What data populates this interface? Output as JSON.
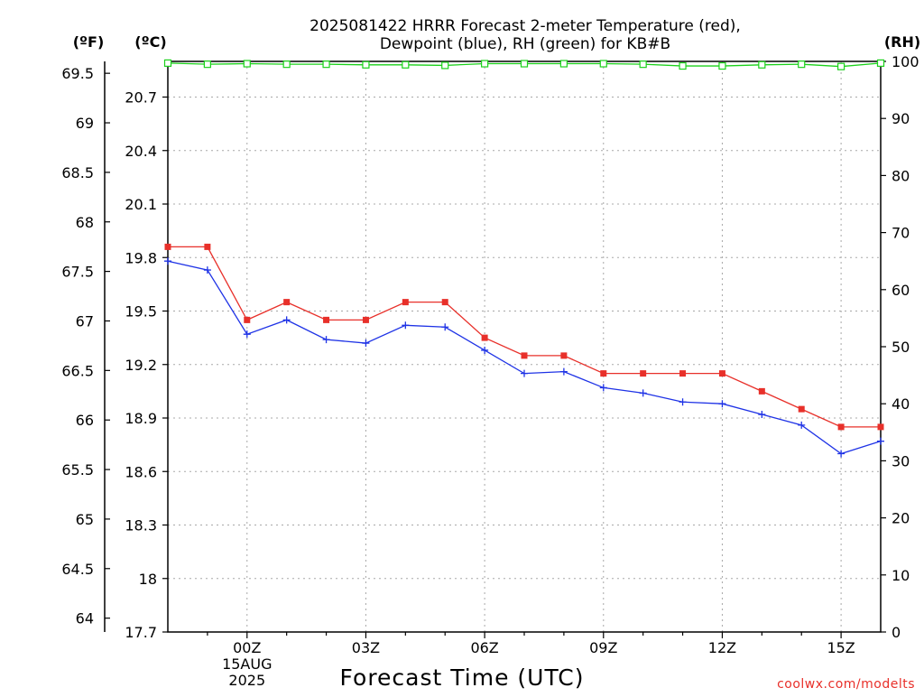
{
  "chart_data": {
    "type": "line",
    "title_lines": [
      "2025081422 HRRR Forecast 2-meter Temperature (red),",
      "Dewpoint (blue), RH (green) for KB#B"
    ],
    "axes": {
      "fahrenheit": {
        "unit_label": "(ºF)",
        "ticks": [
          "64",
          "64.5",
          "65",
          "65.5",
          "66",
          "66.5",
          "67",
          "67.5",
          "68",
          "68.5",
          "69",
          "69.5"
        ]
      },
      "celsius": {
        "unit_label": "(ºC)",
        "ylim": [
          17.7,
          20.9
        ],
        "ticks": [
          "17.7",
          "18",
          "18.3",
          "18.6",
          "18.9",
          "19.2",
          "19.5",
          "19.8",
          "20.1",
          "20.4",
          "20.7"
        ]
      },
      "rh": {
        "unit_label": "(RH)",
        "ylim": [
          0,
          100
        ],
        "ticks": [
          "0",
          "10",
          "20",
          "30",
          "40",
          "50",
          "60",
          "70",
          "80",
          "90",
          "100"
        ]
      }
    },
    "x": {
      "label": "Forecast Time (UTC)",
      "range_hours": [
        -2,
        16
      ],
      "ticks": [
        {
          "hour": 0,
          "lines": [
            "00Z",
            "15AUG",
            "2025"
          ]
        },
        {
          "hour": 3,
          "lines": [
            "03Z"
          ]
        },
        {
          "hour": 6,
          "lines": [
            "06Z"
          ]
        },
        {
          "hour": 9,
          "lines": [
            "09Z"
          ]
        },
        {
          "hour": 12,
          "lines": [
            "12Z"
          ]
        },
        {
          "hour": 15,
          "lines": [
            "15Z"
          ]
        }
      ]
    },
    "series": [
      {
        "key": "temperature",
        "color": "#e8302a",
        "marker": "filled-square",
        "axis": "celsius",
        "points": [
          [
            -2,
            19.86
          ],
          [
            -1,
            19.86
          ],
          [
            0,
            19.45
          ],
          [
            1,
            19.55
          ],
          [
            2,
            19.45
          ],
          [
            3,
            19.45
          ],
          [
            4,
            19.55
          ],
          [
            5,
            19.55
          ],
          [
            6,
            19.35
          ],
          [
            7,
            19.25
          ],
          [
            8,
            19.25
          ],
          [
            9,
            19.15
          ],
          [
            10,
            19.15
          ],
          [
            11,
            19.15
          ],
          [
            12,
            19.15
          ],
          [
            13,
            19.05
          ],
          [
            14,
            18.95
          ],
          [
            15,
            18.85
          ],
          [
            16,
            18.85
          ]
        ]
      },
      {
        "key": "dewpoint",
        "color": "#1f33e6",
        "marker": "plus",
        "axis": "celsius",
        "points": [
          [
            -2,
            19.78
          ],
          [
            -1,
            19.73
          ],
          [
            0,
            19.37
          ],
          [
            1,
            19.45
          ],
          [
            2,
            19.34
          ],
          [
            3,
            19.32
          ],
          [
            4,
            19.42
          ],
          [
            5,
            19.41
          ],
          [
            6,
            19.28
          ],
          [
            7,
            19.15
          ],
          [
            8,
            19.16
          ],
          [
            9,
            19.07
          ],
          [
            10,
            19.04
          ],
          [
            11,
            18.99
          ],
          [
            12,
            18.98
          ],
          [
            13,
            18.92
          ],
          [
            14,
            18.86
          ],
          [
            15,
            18.7
          ],
          [
            16,
            18.77
          ]
        ]
      },
      {
        "key": "rh",
        "color": "#1bd11b",
        "marker": "open-square",
        "axis": "rh",
        "points": [
          [
            -2,
            99.7
          ],
          [
            -1,
            99.5
          ],
          [
            0,
            99.6
          ],
          [
            1,
            99.5
          ],
          [
            2,
            99.5
          ],
          [
            3,
            99.4
          ],
          [
            4,
            99.4
          ],
          [
            5,
            99.3
          ],
          [
            6,
            99.6
          ],
          [
            7,
            99.6
          ],
          [
            8,
            99.6
          ],
          [
            9,
            99.6
          ],
          [
            10,
            99.5
          ],
          [
            11,
            99.2
          ],
          [
            12,
            99.2
          ],
          [
            13,
            99.4
          ],
          [
            14,
            99.5
          ],
          [
            15,
            99.1
          ],
          [
            16,
            99.7
          ]
        ]
      }
    ],
    "grid": true
  },
  "credit": "coolwx.com/modelts"
}
